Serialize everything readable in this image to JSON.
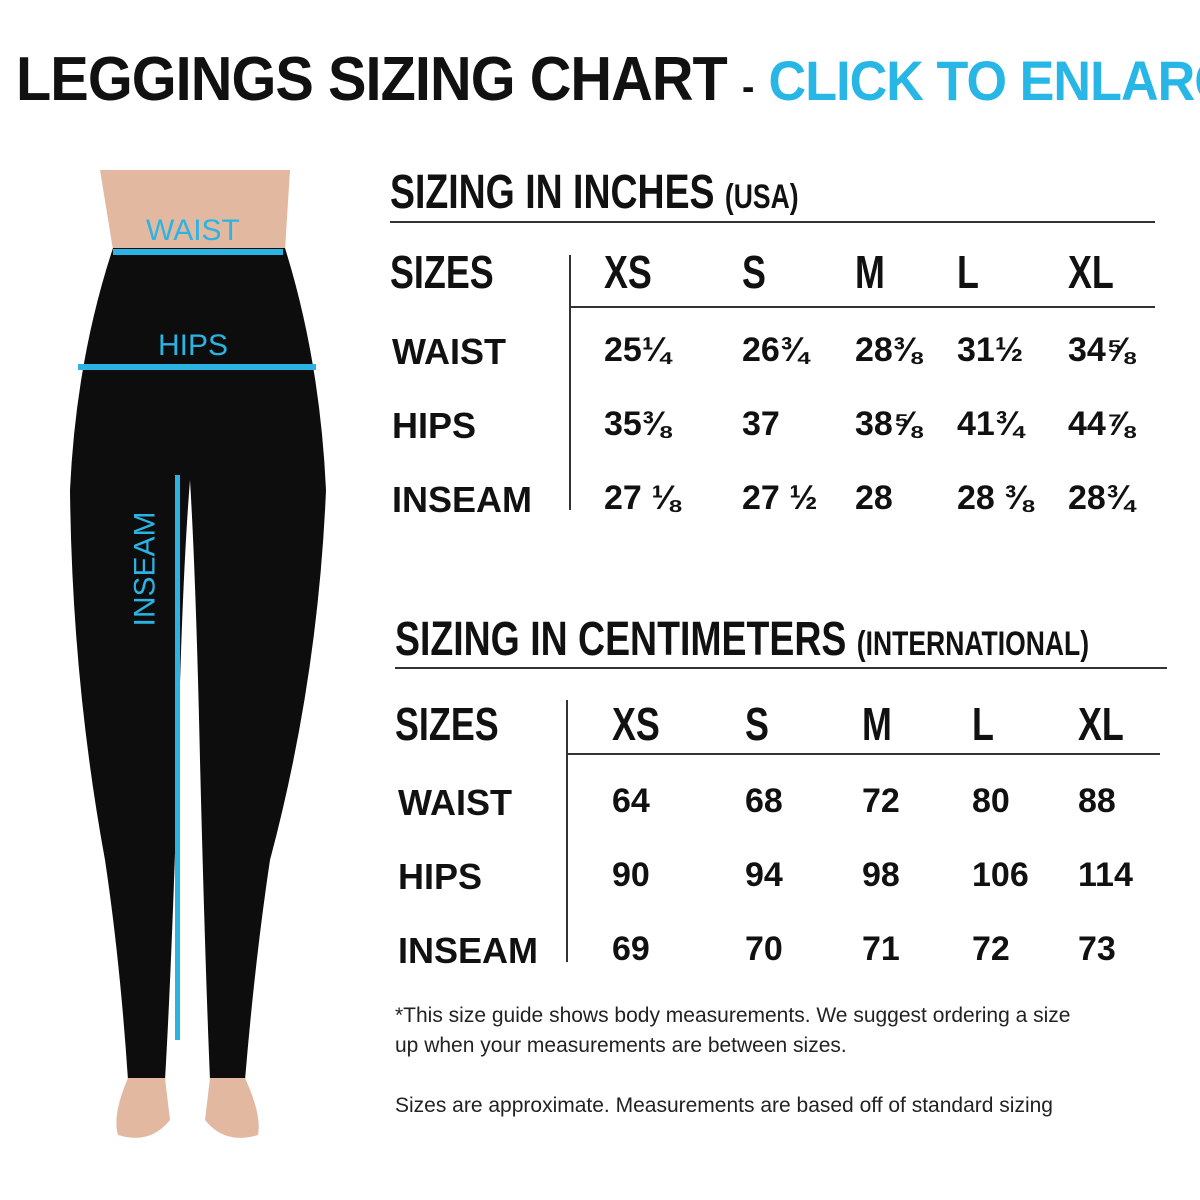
{
  "header": {
    "title": "LEGGINGS SIZING CHART",
    "separator": "-",
    "cta": "CLICK TO ENLARGE"
  },
  "colors": {
    "accent": "#27b6e6",
    "leggings": "#0d0d0d",
    "skin": "#e2b9a0"
  },
  "figure": {
    "labels": {
      "waist": "WAIST",
      "hips": "HIPS",
      "inseam": "INSEAM"
    }
  },
  "inches": {
    "title": "SIZING IN INCHES",
    "subtitle": "(USA)",
    "sizes_label": "SIZES",
    "sizes": [
      "XS",
      "S",
      "M",
      "L",
      "XL"
    ],
    "rows": [
      {
        "label": "WAIST",
        "values": [
          "25¼",
          "26¾",
          "28⅜",
          "31½",
          "34⅝"
        ]
      },
      {
        "label": "HIPS",
        "values": [
          "35⅜",
          "37",
          "38⅝",
          "41¾",
          "44⅞"
        ]
      },
      {
        "label": "INSEAM",
        "values": [
          "27 ⅛",
          "27 ½",
          "28",
          "28 ⅜",
          "28¾"
        ]
      }
    ]
  },
  "cm": {
    "title": "SIZING IN CENTIMETERS",
    "subtitle": "(INTERNATIONAL)",
    "sizes_label": "SIZES",
    "sizes": [
      "XS",
      "S",
      "M",
      "L",
      "XL"
    ],
    "rows": [
      {
        "label": "WAIST",
        "values": [
          "64",
          "68",
          "72",
          "80",
          "88"
        ]
      },
      {
        "label": "HIPS",
        "values": [
          "90",
          "94",
          "98",
          "106",
          "114"
        ]
      },
      {
        "label": "INSEAM",
        "values": [
          "69",
          "70",
          "71",
          "72",
          "73"
        ]
      }
    ]
  },
  "notes": {
    "line1": "*This size guide shows body measurements. We suggest ordering a size",
    "line2": "up when your measurements are between sizes.",
    "line3": "Sizes are approximate. Measurements are based off of standard sizing"
  }
}
